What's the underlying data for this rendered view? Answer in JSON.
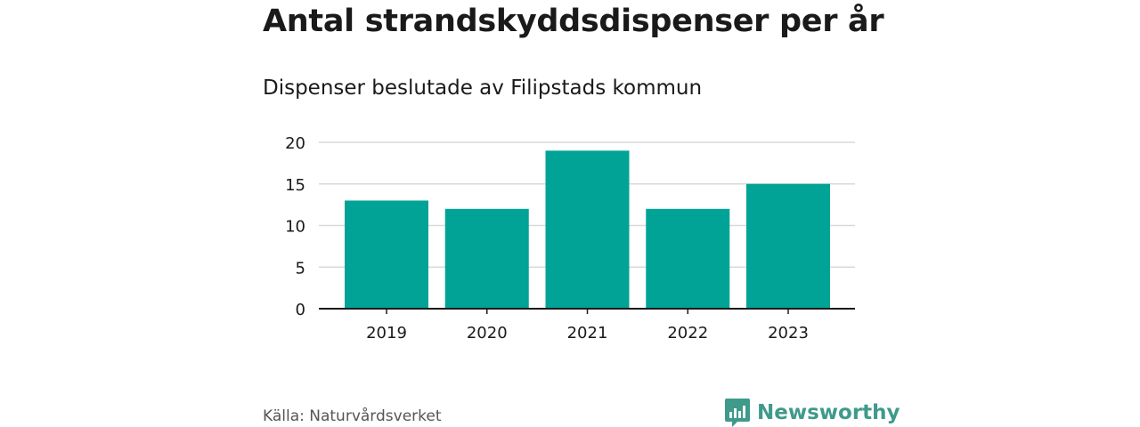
{
  "colors": {
    "bar": "#00a396",
    "grid": "#d9d9d9",
    "axis": "#1a1a1a",
    "brand": "#3f9a8b"
  },
  "footer": {
    "source": "Källa: Naturvårdsverket",
    "brand_name": "Newsworthy",
    "brand_icon": "bar-chart-speech-bubble-icon"
  },
  "chart_data": {
    "type": "bar",
    "title": "Antal strandskyddsdispenser per år",
    "subtitle": "Dispenser beslutade av Filipstads kommun",
    "categories": [
      "2019",
      "2020",
      "2021",
      "2022",
      "2023"
    ],
    "values": [
      13,
      12,
      19,
      12,
      15
    ],
    "yticks": [
      "0",
      "5",
      "10",
      "15",
      "20"
    ],
    "ylim": [
      0,
      20
    ],
    "xlabel": "",
    "ylabel": "",
    "grid": true,
    "legend": "none"
  }
}
